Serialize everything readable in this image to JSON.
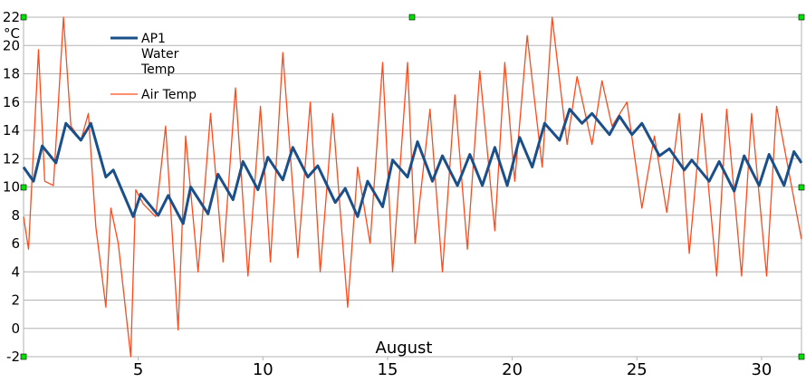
{
  "chart_data": {
    "type": "line",
    "xlabel": "August",
    "ylabel": "°C",
    "xlim": [
      0.4,
      31.6
    ],
    "ylim": [
      -2,
      22
    ],
    "x_ticks": [
      5,
      10,
      15,
      20,
      25,
      30
    ],
    "y_ticks": [
      -2,
      0,
      2,
      4,
      6,
      8,
      10,
      12,
      14,
      16,
      18,
      20,
      22
    ],
    "grid": true,
    "legend_position": "top-left",
    "series": [
      {
        "name": "AP1 Water Temp",
        "color": "#1a4f8a",
        "x": [
          0.4,
          0.8,
          1.15,
          1.7,
          2.1,
          2.7,
          3.1,
          3.7,
          4.0,
          4.8,
          5.1,
          5.8,
          6.2,
          6.8,
          7.1,
          7.8,
          8.2,
          8.8,
          9.2,
          9.8,
          10.2,
          10.8,
          11.2,
          11.8,
          12.2,
          12.9,
          13.3,
          13.8,
          14.2,
          14.8,
          15.2,
          15.8,
          16.2,
          16.8,
          17.2,
          17.8,
          18.3,
          18.8,
          19.3,
          19.8,
          20.3,
          20.8,
          21.3,
          21.9,
          22.3,
          22.8,
          23.2,
          23.9,
          24.3,
          24.8,
          25.2,
          25.9,
          26.3,
          26.9,
          27.2,
          27.9,
          28.3,
          28.9,
          29.3,
          29.9,
          30.3,
          30.9,
          31.3,
          31.6
        ],
        "y": [
          11.4,
          10.4,
          12.9,
          11.7,
          14.5,
          13.3,
          14.5,
          10.7,
          11.2,
          7.9,
          9.5,
          8.0,
          9.4,
          7.4,
          10.0,
          8.1,
          10.9,
          9.1,
          11.8,
          9.8,
          12.1,
          10.5,
          12.8,
          10.7,
          11.5,
          8.9,
          9.9,
          7.9,
          10.4,
          8.6,
          11.9,
          10.7,
          13.2,
          10.4,
          12.2,
          10.1,
          12.3,
          10.1,
          12.8,
          10.1,
          13.5,
          11.4,
          14.5,
          13.3,
          15.5,
          14.5,
          15.2,
          13.7,
          15.0,
          13.7,
          14.5,
          12.2,
          12.7,
          11.2,
          11.9,
          10.4,
          11.8,
          9.7,
          12.2,
          10.1,
          12.3,
          10.1,
          12.5,
          11.7
        ]
      },
      {
        "name": "Air Temp",
        "color": "#ff4a1c",
        "x": [
          0.4,
          0.6,
          1.0,
          1.25,
          1.6,
          2.0,
          2.3,
          2.7,
          3.0,
          3.3,
          3.7,
          3.9,
          4.2,
          4.7,
          4.9,
          5.2,
          5.7,
          6.1,
          6.6,
          6.9,
          7.4,
          7.9,
          8.4,
          8.9,
          9.4,
          9.9,
          10.3,
          10.8,
          11.4,
          11.9,
          12.3,
          12.8,
          13.4,
          13.8,
          14.3,
          14.8,
          15.2,
          15.8,
          16.1,
          16.7,
          17.2,
          17.7,
          18.2,
          18.7,
          19.3,
          19.7,
          20.1,
          20.6,
          21.2,
          21.6,
          22.2,
          22.6,
          23.2,
          23.6,
          24.0,
          24.6,
          25.2,
          25.7,
          26.2,
          26.7,
          27.1,
          27.6,
          28.2,
          28.6,
          29.2,
          29.6,
          30.2,
          30.6,
          31.6
        ],
        "y": [
          7.9,
          5.6,
          19.7,
          10.4,
          10.1,
          22.0,
          14.3,
          13.3,
          15.2,
          7.2,
          1.5,
          8.5,
          6.0,
          -2.0,
          9.8,
          8.8,
          7.9,
          14.3,
          -0.1,
          13.6,
          4.0,
          15.2,
          4.7,
          17.0,
          3.7,
          15.7,
          4.7,
          19.5,
          5.0,
          16.0,
          4.0,
          15.2,
          1.5,
          11.4,
          6.0,
          18.8,
          4.0,
          18.8,
          6.0,
          15.5,
          4.0,
          16.5,
          5.6,
          18.2,
          6.9,
          18.8,
          10.4,
          20.7,
          11.4,
          22.0,
          13.0,
          17.8,
          13.0,
          17.5,
          14.3,
          16.0,
          8.5,
          13.6,
          8.2,
          15.2,
          5.3,
          15.2,
          3.7,
          15.5,
          3.7,
          15.2,
          3.7,
          15.7,
          6.3
        ]
      }
    ]
  }
}
